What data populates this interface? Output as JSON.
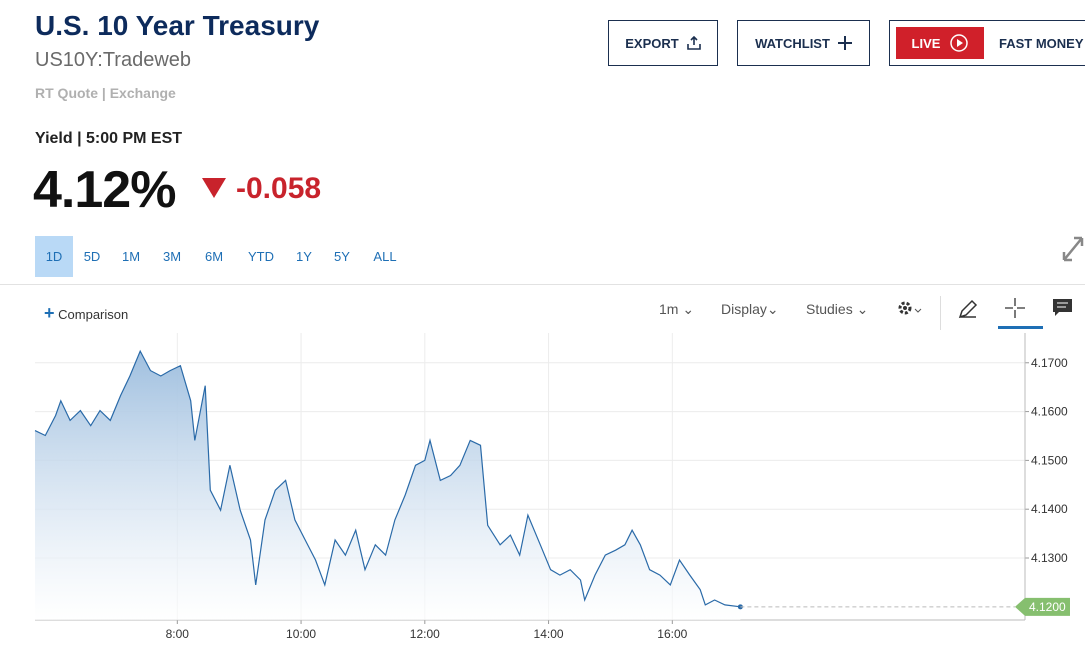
{
  "header": {
    "title": "U.S. 10 Year Treasury",
    "symbol": "US10Y:Tradeweb",
    "quote_source": "RT Quote | Exchange",
    "yield_time": "Yield | 5:00 PM EST",
    "price": "4.12%",
    "change": "-0.058"
  },
  "buttons": [
    "EXPORT",
    "WATCHLIST",
    "LIVE",
    "FAST MONEY"
  ],
  "range_tabs": [
    "1D",
    "5D",
    "1M",
    "3M",
    "6M",
    "YTD",
    "1Y",
    "5Y",
    "ALL"
  ],
  "active_tab": 0,
  "toolbar": {
    "comparison": "Comparison",
    "interval": "1m",
    "display": "Display",
    "studies": "Studies"
  },
  "chart_data": {
    "type": "area",
    "color": "#2a6aa8",
    "x": [
      342,
      352,
      362,
      367,
      376,
      386,
      396,
      405,
      415,
      425,
      434,
      444,
      454,
      464,
      473,
      483,
      493,
      497,
      507,
      512,
      522,
      531,
      541,
      551,
      556,
      565,
      575,
      585,
      594,
      604,
      614,
      623,
      633,
      643,
      653,
      662,
      672,
      682,
      691,
      701,
      711,
      720,
      725,
      735,
      745,
      754,
      764,
      774,
      781,
      793,
      803,
      812,
      820,
      832,
      842,
      851,
      861,
      871,
      875,
      885,
      895,
      905,
      914,
      921,
      929,
      938,
      948,
      958,
      967,
      977,
      987,
      992,
      1001,
      1011,
      1026
    ],
    "values": [
      4.1561,
      4.1551,
      4.1592,
      4.1622,
      4.1582,
      4.1602,
      4.1571,
      4.1602,
      4.1582,
      4.1633,
      4.1673,
      4.1724,
      4.1684,
      4.1673,
      4.1684,
      4.1694,
      4.1622,
      4.1541,
      4.1653,
      4.1439,
      4.1398,
      4.149,
      4.1398,
      4.1337,
      4.1245,
      4.1378,
      4.1439,
      4.1459,
      4.1378,
      4.1337,
      4.1296,
      4.1245,
      4.1337,
      4.1306,
      4.1357,
      4.1276,
      4.1327,
      4.1306,
      4.1378,
      4.1429,
      4.149,
      4.15,
      4.1541,
      4.1459,
      4.1469,
      4.149,
      4.1541,
      4.1531,
      4.1367,
      4.1327,
      4.1347,
      4.1306,
      4.1388,
      4.1327,
      4.1276,
      4.1265,
      4.1276,
      4.1255,
      4.1214,
      4.1265,
      4.1306,
      4.1316,
      4.1327,
      4.1357,
      4.1327,
      4.1276,
      4.1265,
      4.1245,
      4.1296,
      4.1265,
      4.1235,
      4.1204,
      4.1214,
      4.1204,
      4.12
    ],
    "xlim": [
      342,
      1302
    ],
    "xticks": [
      {
        "value": 480,
        "label": "8:00"
      },
      {
        "value": 600,
        "label": "10:00"
      },
      {
        "value": 720,
        "label": "12:00"
      },
      {
        "value": 840,
        "label": "14:00"
      },
      {
        "value": 960,
        "label": "16:00"
      }
    ],
    "ylim": [
      4.1173,
      4.1761
    ],
    "yticks": [
      {
        "value": 4.13,
        "label": "4.1300"
      },
      {
        "value": 4.14,
        "label": "4.1400"
      },
      {
        "value": 4.15,
        "label": "4.1500"
      },
      {
        "value": 4.16,
        "label": "4.1600"
      },
      {
        "value": 4.17,
        "label": "4.1700"
      }
    ],
    "grid": true,
    "last_price": {
      "value": 4.12,
      "label": "4.1200"
    }
  }
}
